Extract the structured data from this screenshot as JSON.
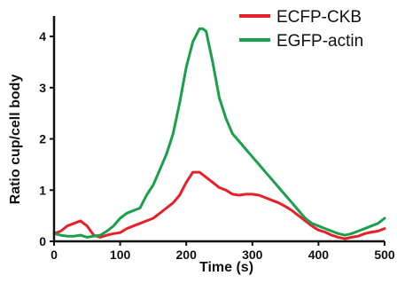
{
  "chart_data": {
    "type": "line",
    "title": "",
    "xlabel": "Time (s)",
    "ylabel": "Ratio cup/cell body",
    "xlim": [
      0,
      500
    ],
    "ylim": [
      0,
      4.4
    ],
    "x_ticks": [
      0,
      100,
      200,
      300,
      400,
      500
    ],
    "y_ticks": [
      0,
      1,
      2,
      3,
      4
    ],
    "grid": false,
    "legend_position": "top-right",
    "series": [
      {
        "name": "ECFP-CKB",
        "color": "#e8202a",
        "x": [
          0,
          10,
          20,
          30,
          40,
          50,
          60,
          70,
          80,
          90,
          100,
          110,
          120,
          130,
          140,
          150,
          160,
          170,
          180,
          190,
          200,
          210,
          220,
          230,
          240,
          250,
          260,
          270,
          280,
          290,
          300,
          310,
          320,
          330,
          340,
          350,
          360,
          370,
          380,
          390,
          400,
          410,
          420,
          430,
          440,
          450,
          460,
          470,
          480,
          490,
          500
        ],
        "values": [
          0.15,
          0.2,
          0.3,
          0.35,
          0.4,
          0.3,
          0.12,
          0.08,
          0.12,
          0.15,
          0.17,
          0.25,
          0.3,
          0.35,
          0.4,
          0.45,
          0.55,
          0.65,
          0.75,
          0.9,
          1.15,
          1.35,
          1.35,
          1.25,
          1.15,
          1.05,
          1.0,
          0.92,
          0.9,
          0.92,
          0.92,
          0.9,
          0.85,
          0.8,
          0.75,
          0.68,
          0.6,
          0.5,
          0.4,
          0.3,
          0.22,
          0.18,
          0.12,
          0.08,
          0.05,
          0.08,
          0.1,
          0.15,
          0.18,
          0.2,
          0.25
        ]
      },
      {
        "name": "EGFP-actin",
        "color": "#1aa04a",
        "x": [
          0,
          10,
          20,
          30,
          40,
          50,
          60,
          70,
          80,
          90,
          100,
          110,
          120,
          130,
          140,
          150,
          160,
          170,
          180,
          190,
          200,
          210,
          220,
          225,
          230,
          240,
          250,
          260,
          270,
          280,
          290,
          300,
          310,
          320,
          330,
          340,
          350,
          360,
          370,
          380,
          390,
          400,
          410,
          420,
          430,
          440,
          450,
          460,
          470,
          480,
          490,
          500
        ],
        "values": [
          0.15,
          0.12,
          0.1,
          0.1,
          0.12,
          0.08,
          0.1,
          0.12,
          0.2,
          0.3,
          0.45,
          0.55,
          0.6,
          0.65,
          0.9,
          1.1,
          1.4,
          1.7,
          2.1,
          2.7,
          3.4,
          3.9,
          4.15,
          4.15,
          4.1,
          3.5,
          2.8,
          2.4,
          2.1,
          1.95,
          1.8,
          1.65,
          1.5,
          1.35,
          1.2,
          1.05,
          0.9,
          0.75,
          0.6,
          0.45,
          0.35,
          0.3,
          0.25,
          0.2,
          0.15,
          0.12,
          0.15,
          0.2,
          0.25,
          0.3,
          0.35,
          0.45
        ]
      }
    ]
  }
}
